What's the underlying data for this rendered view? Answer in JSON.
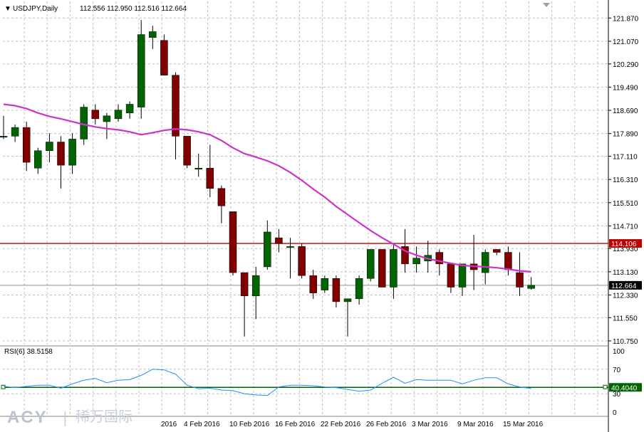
{
  "header": {
    "symbol": "USDJPY,Daily",
    "ohlc": "112.556 112.950 112.516 112.664",
    "menu_glyph": "▼"
  },
  "rsi_header": {
    "label": "RSI(6) 38.5158"
  },
  "logo": {
    "latin": "ACY",
    "separator": "|",
    "cjk": "稀万国际"
  },
  "colors": {
    "bull": "#006400",
    "bear": "#800000",
    "wick": "#000000",
    "ma": "#cc33cc",
    "resistance": "#c00000",
    "last_price_line": "#7f9f7f",
    "rsi_line": "#1e90ff",
    "rsi_level": "#006400",
    "grid": "#c0c0c0"
  },
  "chart_data": [
    {
      "type": "candlestick",
      "title": "USDJPY,Daily",
      "ylim": [
        110.7,
        122.0
      ],
      "y_ticks": [
        "121.870",
        "121.070",
        "120.290",
        "119.490",
        "118.690",
        "117.890",
        "117.110",
        "116.310",
        "115.510",
        "114.710",
        "113.930",
        "113.130",
        "112.330",
        "111.550",
        "110.750"
      ],
      "x_ticks": [
        "4 Feb 2016",
        "10 Feb 2016",
        "16 Feb 2016",
        "22 Feb 2016",
        "26 Feb 2016",
        "3 Mar 2016",
        "9 Mar 2016",
        "15 Mar 2016"
      ],
      "x_tick_first_partial": "2016",
      "candles": [
        {
          "o": 117.8,
          "h": 118.5,
          "l": 117.7,
          "c": 117.8
        },
        {
          "o": 117.8,
          "h": 118.2,
          "l": 117.6,
          "c": 118.1
        },
        {
          "o": 118.1,
          "h": 118.3,
          "l": 116.6,
          "c": 116.9
        },
        {
          "o": 116.7,
          "h": 117.4,
          "l": 116.5,
          "c": 117.3
        },
        {
          "o": 117.3,
          "h": 117.9,
          "l": 116.9,
          "c": 117.6
        },
        {
          "o": 117.6,
          "h": 117.8,
          "l": 116.0,
          "c": 116.8
        },
        {
          "o": 116.8,
          "h": 117.9,
          "l": 116.5,
          "c": 117.7
        },
        {
          "o": 117.7,
          "h": 118.9,
          "l": 117.5,
          "c": 118.8
        },
        {
          "o": 118.7,
          "h": 118.9,
          "l": 118.2,
          "c": 118.4
        },
        {
          "o": 118.3,
          "h": 118.6,
          "l": 117.7,
          "c": 118.5
        },
        {
          "o": 118.4,
          "h": 118.9,
          "l": 118.3,
          "c": 118.7
        },
        {
          "o": 118.6,
          "h": 119.0,
          "l": 118.4,
          "c": 118.9
        },
        {
          "o": 118.8,
          "h": 121.8,
          "l": 118.4,
          "c": 121.3
        },
        {
          "o": 121.2,
          "h": 121.6,
          "l": 120.8,
          "c": 121.4
        },
        {
          "o": 121.1,
          "h": 121.3,
          "l": 119.9,
          "c": 119.9
        },
        {
          "o": 119.9,
          "h": 120.0,
          "l": 117.0,
          "c": 117.8
        },
        {
          "o": 117.8,
          "h": 117.8,
          "l": 116.7,
          "c": 116.8
        },
        {
          "o": 116.7,
          "h": 117.2,
          "l": 116.4,
          "c": 116.7
        },
        {
          "o": 116.7,
          "h": 117.5,
          "l": 115.7,
          "c": 116.0
        },
        {
          "o": 116.0,
          "h": 116.1,
          "l": 114.8,
          "c": 115.4
        },
        {
          "o": 115.2,
          "h": 115.2,
          "l": 113.0,
          "c": 113.1
        },
        {
          "o": 113.1,
          "h": 113.1,
          "l": 110.9,
          "c": 112.3
        },
        {
          "o": 112.3,
          "h": 113.3,
          "l": 111.5,
          "c": 113.0
        },
        {
          "o": 113.3,
          "h": 114.9,
          "l": 113.2,
          "c": 114.5
        },
        {
          "o": 114.3,
          "h": 114.6,
          "l": 113.8,
          "c": 114.1
        },
        {
          "o": 114.0,
          "h": 114.3,
          "l": 112.9,
          "c": 114.0
        },
        {
          "o": 114.0,
          "h": 114.1,
          "l": 112.9,
          "c": 113.0
        },
        {
          "o": 113.0,
          "h": 113.2,
          "l": 112.2,
          "c": 112.4
        },
        {
          "o": 112.5,
          "h": 113.0,
          "l": 112.4,
          "c": 112.9
        },
        {
          "o": 112.9,
          "h": 113.0,
          "l": 111.9,
          "c": 112.1
        },
        {
          "o": 112.1,
          "h": 112.2,
          "l": 110.9,
          "c": 112.2
        },
        {
          "o": 112.2,
          "h": 113.0,
          "l": 112.0,
          "c": 112.9
        },
        {
          "o": 112.9,
          "h": 113.9,
          "l": 112.8,
          "c": 113.9
        },
        {
          "o": 113.9,
          "h": 113.9,
          "l": 112.6,
          "c": 112.6
        },
        {
          "o": 112.6,
          "h": 114.1,
          "l": 112.2,
          "c": 113.9
        },
        {
          "o": 114.0,
          "h": 114.6,
          "l": 113.1,
          "c": 113.4
        },
        {
          "o": 113.4,
          "h": 114.0,
          "l": 113.1,
          "c": 113.6
        },
        {
          "o": 113.5,
          "h": 114.2,
          "l": 113.1,
          "c": 113.7
        },
        {
          "o": 113.8,
          "h": 113.9,
          "l": 113.0,
          "c": 113.4
        },
        {
          "o": 113.4,
          "h": 113.4,
          "l": 112.4,
          "c": 112.6
        },
        {
          "o": 112.6,
          "h": 113.4,
          "l": 112.3,
          "c": 113.4
        },
        {
          "o": 113.4,
          "h": 114.4,
          "l": 112.5,
          "c": 113.2
        },
        {
          "o": 113.1,
          "h": 113.9,
          "l": 112.7,
          "c": 113.8
        },
        {
          "o": 113.9,
          "h": 113.9,
          "l": 113.7,
          "c": 113.8
        },
        {
          "o": 113.8,
          "h": 114.0,
          "l": 113.0,
          "c": 113.2
        },
        {
          "o": 113.1,
          "h": 113.8,
          "l": 112.3,
          "c": 112.6
        },
        {
          "o": 112.556,
          "h": 112.95,
          "l": 112.516,
          "c": 112.664
        }
      ],
      "moving_average": [
        118.9,
        118.85,
        118.75,
        118.6,
        118.48,
        118.4,
        118.3,
        118.2,
        118.12,
        118.06,
        118.02,
        117.95,
        117.85,
        117.92,
        118.0,
        118.05,
        118.02,
        117.95,
        117.85,
        117.65,
        117.4,
        117.2,
        117.08,
        116.95,
        116.78,
        116.55,
        116.28,
        115.98,
        115.7,
        115.38,
        115.1,
        114.82,
        114.55,
        114.3,
        114.08,
        113.85,
        113.7,
        113.58,
        113.5,
        113.42,
        113.35,
        113.32,
        113.3,
        113.27,
        113.22,
        113.16,
        113.13
      ],
      "resistance": {
        "value": 114.106,
        "label": "114.106"
      },
      "last_price": {
        "value": 112.664,
        "label": "112.664"
      }
    },
    {
      "type": "line",
      "title": "RSI(6) 38.5158",
      "ylim": [
        0,
        100
      ],
      "y_ticks": [
        "100",
        "70",
        "30",
        "0"
      ],
      "level": {
        "value": 40.404,
        "label": "40.4040"
      },
      "values": [
        42,
        40,
        42,
        44,
        44,
        39,
        46,
        52,
        55,
        48,
        52,
        53,
        60,
        70,
        69,
        62,
        44,
        38,
        39,
        36,
        35,
        30,
        28,
        27,
        41,
        44,
        44,
        43,
        41,
        40,
        37,
        34,
        36,
        47,
        57,
        47,
        53,
        52,
        52,
        52,
        46,
        52,
        56,
        56,
        46,
        41,
        38.5
      ]
    }
  ]
}
